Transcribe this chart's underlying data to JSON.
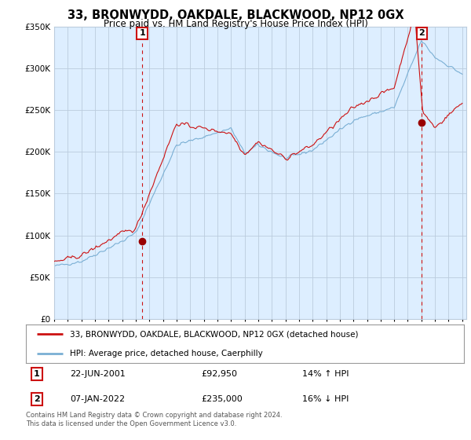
{
  "title": "33, BRONWYDD, OAKDALE, BLACKWOOD, NP12 0GX",
  "subtitle": "Price paid vs. HM Land Registry's House Price Index (HPI)",
  "legend_line1": "33, BRONWYDD, OAKDALE, BLACKWOOD, NP12 0GX (detached house)",
  "legend_line2": "HPI: Average price, detached house, Caerphilly",
  "annotation1_label": "1",
  "annotation1_date": "22-JUN-2001",
  "annotation1_price": "£92,950",
  "annotation1_hpi": "14% ↑ HPI",
  "annotation2_label": "2",
  "annotation2_date": "07-JAN-2022",
  "annotation2_price": "£235,000",
  "annotation2_hpi": "16% ↓ HPI",
  "footer": "Contains HM Land Registry data © Crown copyright and database right 2024.\nThis data is licensed under the Open Government Licence v3.0.",
  "hpi_color": "#7aafd4",
  "price_color": "#cc1111",
  "annotation_box_color": "#cc1111",
  "dot_color": "#990000",
  "ylim_min": 0,
  "ylim_max": 350000,
  "bg_color": "#ffffff",
  "plot_bg_color": "#ddeeff",
  "grid_color": "#bbccdd",
  "sale1_year": 2001.47,
  "sale1_price": 92950,
  "sale2_year": 2022.02,
  "sale2_price": 235000
}
